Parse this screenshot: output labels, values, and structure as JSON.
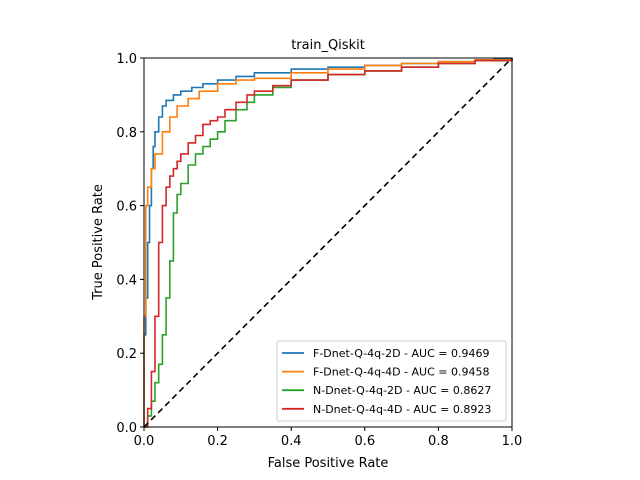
{
  "chart_data": {
    "type": "line",
    "title": "train_Qiskit",
    "xlabel": "False Positive Rate",
    "ylabel": "True Positive Rate",
    "xlim": [
      0.0,
      1.0
    ],
    "ylim": [
      0.0,
      1.0
    ],
    "xticks": [
      "0.0",
      "0.2",
      "0.4",
      "0.6",
      "0.8",
      "1.0"
    ],
    "yticks": [
      "0.0",
      "0.2",
      "0.4",
      "0.6",
      "0.8",
      "1.0"
    ],
    "grid": false,
    "legend_position": "lower-right",
    "reference_line": {
      "x": [
        0,
        1
      ],
      "y": [
        0,
        1
      ],
      "style": "dashed",
      "color": "#000000"
    },
    "series": [
      {
        "name": "F-Dnet-Q-4q-2D - AUC = 0.9469",
        "color": "#1f77b4",
        "x": [
          0.0,
          0.0,
          0.005,
          0.01,
          0.015,
          0.02,
          0.025,
          0.03,
          0.04,
          0.05,
          0.06,
          0.08,
          0.1,
          0.13,
          0.16,
          0.2,
          0.25,
          0.3,
          0.4,
          0.5,
          0.6,
          0.7,
          0.8,
          0.9,
          0.95,
          1.0
        ],
        "y": [
          0.0,
          0.25,
          0.35,
          0.5,
          0.6,
          0.7,
          0.76,
          0.8,
          0.84,
          0.87,
          0.885,
          0.9,
          0.91,
          0.92,
          0.93,
          0.94,
          0.95,
          0.96,
          0.97,
          0.975,
          0.98,
          0.985,
          0.99,
          0.995,
          0.998,
          1.0
        ]
      },
      {
        "name": "F-Dnet-Q-4q-4D - AUC = 0.9458",
        "color": "#ff7f0e",
        "x": [
          0.0,
          0.0,
          0.005,
          0.01,
          0.02,
          0.03,
          0.05,
          0.07,
          0.09,
          0.12,
          0.15,
          0.2,
          0.25,
          0.3,
          0.4,
          0.5,
          0.6,
          0.7,
          0.8,
          0.9,
          1.0
        ],
        "y": [
          0.0,
          0.3,
          0.6,
          0.65,
          0.7,
          0.74,
          0.8,
          0.84,
          0.87,
          0.89,
          0.91,
          0.93,
          0.94,
          0.945,
          0.96,
          0.97,
          0.98,
          0.985,
          0.99,
          0.995,
          1.0
        ]
      },
      {
        "name": "N-Dnet-Q-4q-2D - AUC = 0.8627",
        "color": "#2ca02c",
        "x": [
          0.0,
          0.01,
          0.02,
          0.03,
          0.04,
          0.05,
          0.06,
          0.07,
          0.08,
          0.09,
          0.1,
          0.12,
          0.14,
          0.16,
          0.18,
          0.2,
          0.22,
          0.25,
          0.28,
          0.3,
          0.35,
          0.4,
          0.5,
          0.6,
          0.7,
          0.8,
          0.9,
          1.0
        ],
        "y": [
          0.0,
          0.03,
          0.07,
          0.12,
          0.17,
          0.25,
          0.35,
          0.45,
          0.58,
          0.63,
          0.66,
          0.71,
          0.74,
          0.76,
          0.78,
          0.8,
          0.83,
          0.86,
          0.88,
          0.9,
          0.92,
          0.94,
          0.955,
          0.965,
          0.975,
          0.985,
          0.993,
          1.0
        ]
      },
      {
        "name": "N-Dnet-Q-4q-4D - AUC = 0.8923",
        "color": "#d62728",
        "x": [
          0.0,
          0.01,
          0.02,
          0.03,
          0.04,
          0.05,
          0.06,
          0.07,
          0.08,
          0.09,
          0.1,
          0.12,
          0.14,
          0.16,
          0.18,
          0.2,
          0.22,
          0.25,
          0.28,
          0.3,
          0.35,
          0.4,
          0.5,
          0.6,
          0.7,
          0.8,
          0.9,
          1.0
        ],
        "y": [
          0.0,
          0.05,
          0.15,
          0.3,
          0.5,
          0.6,
          0.65,
          0.68,
          0.7,
          0.72,
          0.74,
          0.77,
          0.79,
          0.82,
          0.83,
          0.84,
          0.86,
          0.88,
          0.9,
          0.91,
          0.925,
          0.94,
          0.955,
          0.965,
          0.975,
          0.985,
          0.993,
          1.0
        ]
      }
    ]
  }
}
